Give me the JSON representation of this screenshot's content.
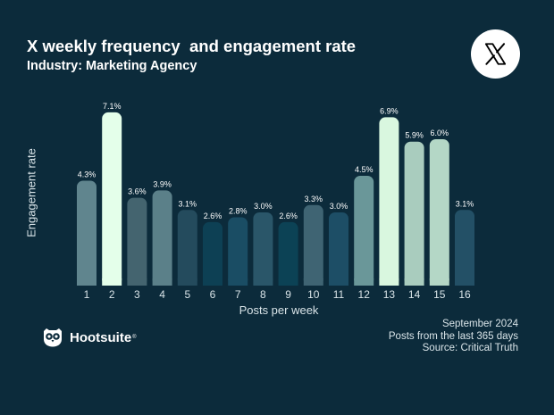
{
  "header": {
    "title": "X weekly frequency  and engagement rate",
    "subtitle": "Industry: Marketing Agency"
  },
  "logos": {
    "platform_icon": "x-logo-icon",
    "brand_icon": "hootsuite-owl-icon",
    "brand_name": "Hootsuite",
    "brand_mark": "®"
  },
  "notes": {
    "date": "September 2024",
    "period": "Posts from the last 365 days",
    "source": "Source: Critical Truth"
  },
  "colors": {
    "background": "#0c2b3b",
    "text": "#ffffff",
    "axis_text": "#d9e4e8"
  },
  "chart_data": {
    "type": "bar",
    "title": "X weekly frequency  and engagement rate",
    "subtitle": "Industry: Marketing Agency",
    "xlabel": "Posts per week",
    "ylabel": "Engagement rate",
    "categories": [
      "1",
      "2",
      "3",
      "4",
      "5",
      "6",
      "7",
      "8",
      "9",
      "10",
      "11",
      "12",
      "13",
      "14",
      "15",
      "16"
    ],
    "values": [
      4.3,
      7.1,
      3.6,
      3.9,
      3.1,
      2.6,
      2.8,
      3.0,
      2.6,
      3.3,
      3.0,
      4.5,
      6.9,
      5.9,
      6.0,
      3.1
    ],
    "value_labels": [
      "4.3%",
      "7.1%",
      "3.6%",
      "3.9%",
      "3.1%",
      "2.6%",
      "2.8%",
      "3.0%",
      "2.6%",
      "3.3%",
      "3.0%",
      "4.5%",
      "6.9%",
      "5.9%",
      "6.0%",
      "3.1%"
    ],
    "bar_colors": [
      "#60858e",
      "#e4ffea",
      "#44646f",
      "#5b8089",
      "#244b5d",
      "#0d4054",
      "#1a4d64",
      "#2a5669",
      "#0c4255",
      "#3f6473",
      "#1d4e66",
      "#6a9799",
      "#d9f7df",
      "#a9ccbe",
      "#b4d7c6",
      "#235066"
    ],
    "ylim": [
      0,
      7.5
    ],
    "grid": false,
    "legend": "none"
  }
}
